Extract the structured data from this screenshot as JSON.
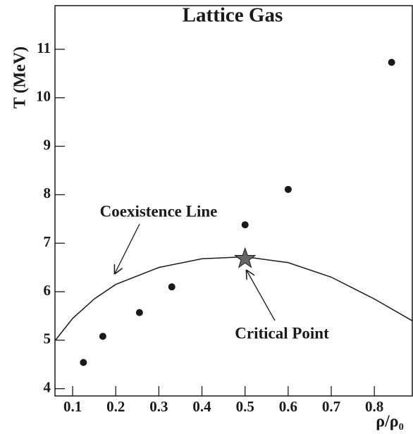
{
  "chart_data": {
    "type": "scatter",
    "title": "Lattice Gas",
    "x_label": "ρ/ρ₀",
    "y_label": "T (MeV)",
    "xlim": [
      0.059,
      0.888
    ],
    "ylim": [
      3.85,
      11.9
    ],
    "xticks": [
      0.1,
      0.2,
      0.3,
      0.4,
      0.5,
      0.6,
      0.7,
      0.8
    ],
    "yticks": [
      4,
      5,
      6,
      7,
      8,
      9,
      10,
      11
    ],
    "color": "#1a1a1a",
    "points": {
      "x": [
        0.125,
        0.17,
        0.255,
        0.33,
        0.5,
        0.6,
        0.84
      ],
      "y": [
        4.54,
        5.08,
        5.57,
        6.1,
        7.38,
        8.11,
        10.73
      ]
    },
    "curve": {
      "label": "Coexistence Line",
      "x": [
        0.06,
        0.1,
        0.15,
        0.2,
        0.3,
        0.4,
        0.5,
        0.6,
        0.7,
        0.8,
        0.888
      ],
      "y": [
        5.0,
        5.45,
        5.85,
        6.15,
        6.5,
        6.68,
        6.72,
        6.6,
        6.3,
        5.85,
        5.4
      ]
    },
    "critical_point": {
      "label": "Critical Point",
      "x": 0.5,
      "y": 6.68
    }
  }
}
